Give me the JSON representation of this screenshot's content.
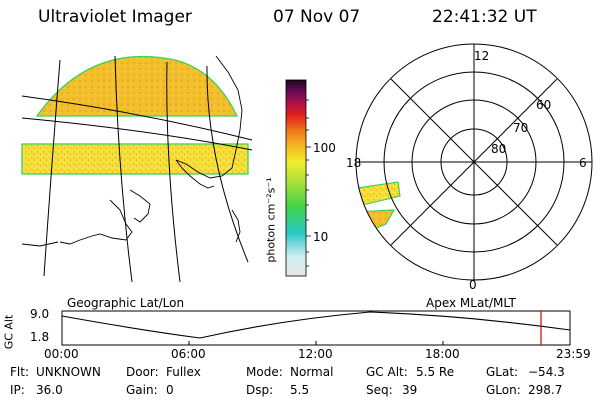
{
  "header": {
    "instrument": "Ultraviolet Imager",
    "date": "07 Nov 07",
    "time": "22:41:32 UT"
  },
  "colorbar": {
    "label": "photon cm⁻²s⁻¹",
    "ticks": [
      "100",
      "10"
    ]
  },
  "polar_plot": {
    "mlt_labels": [
      "12",
      "18",
      "6",
      "0"
    ],
    "lat_labels": [
      "60",
      "70",
      "80"
    ]
  },
  "panels": {
    "left_label": "Geographic Lat/Lon",
    "right_label": "Apex MLat/MLT"
  },
  "altitude_plot": {
    "ylabel": "GC Alt",
    "y_ticks": [
      "9.0",
      "1.8"
    ],
    "x_ticks": [
      "00:00",
      "06:00",
      "12:00",
      "18:00",
      "23:59"
    ],
    "current_marker_color": "#cc0000"
  },
  "info": {
    "flt_label": "Flt:",
    "flt_value": "UNKNOWN",
    "ip_label": "IP:",
    "ip_value": "36.0",
    "door_label": "Door:",
    "door_value": "Fullex",
    "gain_label": "Gain:",
    "gain_value": "0",
    "mode_label": "Mode:",
    "mode_value": "Normal",
    "dsp_label": "Dsp:",
    "dsp_value": "5.5",
    "gcalt_label": "GC Alt:",
    "gcalt_value": "5.5 Re",
    "seq_label": "Seq:",
    "seq_value": "39",
    "glat_label": "GLat:",
    "glat_value": "−54.3",
    "glon_label": "GLon:",
    "glon_value": "298.7"
  }
}
